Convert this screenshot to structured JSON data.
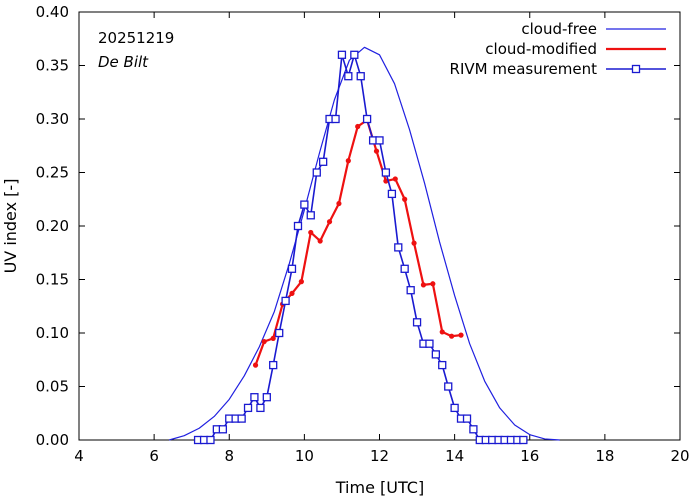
{
  "chart_data": {
    "type": "line",
    "date_label": "20251219",
    "location_label": "De Bilt",
    "xlabel": "Time  [UTC]",
    "ylabel": "UV index  [-]",
    "xlim": [
      4,
      20
    ],
    "ylim": [
      0,
      0.4
    ],
    "xticks": [
      4,
      6,
      8,
      10,
      12,
      14,
      16,
      18,
      20
    ],
    "xtick_labels": [
      "4",
      "6",
      "8",
      "10",
      "12",
      "14",
      "16",
      "18",
      "20"
    ],
    "yticks": [
      0,
      0.05,
      0.1,
      0.15,
      0.2,
      0.25,
      0.3,
      0.35,
      0.4
    ],
    "ytick_labels": [
      "0.00",
      "0.05",
      "0.10",
      "0.15",
      "0.20",
      "0.25",
      "0.30",
      "0.35",
      "0.40"
    ],
    "legend_position": "top-right",
    "series": [
      {
        "name": "cloud-free",
        "color": "#2020e0",
        "style": "line",
        "x": [
          6.4,
          6.8,
          7.2,
          7.6,
          8.0,
          8.4,
          8.8,
          9.2,
          9.6,
          10.0,
          10.4,
          10.8,
          11.2,
          11.6,
          12.0,
          12.4,
          12.8,
          13.2,
          13.6,
          14.0,
          14.4,
          14.8,
          15.2,
          15.6,
          16.0,
          16.4,
          16.8
        ],
        "y": [
          0.0,
          0.004,
          0.011,
          0.022,
          0.038,
          0.06,
          0.087,
          0.12,
          0.165,
          0.215,
          0.268,
          0.318,
          0.355,
          0.367,
          0.36,
          0.333,
          0.29,
          0.24,
          0.185,
          0.135,
          0.09,
          0.055,
          0.03,
          0.014,
          0.005,
          0.001,
          0.0
        ]
      },
      {
        "name": "cloud-modified",
        "color": "#ee1111",
        "style": "line-dots",
        "x": [
          8.7,
          8.93,
          9.17,
          9.42,
          9.67,
          9.92,
          10.17,
          10.42,
          10.67,
          10.92,
          11.17,
          11.42,
          11.67,
          11.92,
          12.17,
          12.42,
          12.67,
          12.92,
          13.17,
          13.42,
          13.67,
          13.92,
          14.17
        ],
        "y": [
          0.07,
          0.092,
          0.095,
          0.127,
          0.137,
          0.148,
          0.194,
          0.186,
          0.204,
          0.221,
          0.261,
          0.293,
          0.299,
          0.27,
          0.242,
          0.244,
          0.225,
          0.184,
          0.145,
          0.146,
          0.101,
          0.097,
          0.098
        ]
      },
      {
        "name": "RIVM measurement",
        "color": "#1a1ad0",
        "style": "line-squares",
        "x": [
          7.17,
          7.33,
          7.5,
          7.67,
          7.83,
          8.0,
          8.17,
          8.33,
          8.5,
          8.67,
          8.83,
          9.0,
          9.17,
          9.33,
          9.5,
          9.67,
          9.83,
          10.0,
          10.17,
          10.33,
          10.5,
          10.67,
          10.83,
          11.0,
          11.17,
          11.33,
          11.5,
          11.67,
          11.83,
          12.0,
          12.17,
          12.33,
          12.5,
          12.67,
          12.83,
          13.0,
          13.17,
          13.33,
          13.5,
          13.67,
          13.83,
          14.0,
          14.17,
          14.33,
          14.5,
          14.67,
          14.83,
          15.0,
          15.17,
          15.33,
          15.5,
          15.67,
          15.83
        ],
        "y": [
          0.0,
          0.0,
          0.0,
          0.01,
          0.01,
          0.02,
          0.02,
          0.02,
          0.03,
          0.04,
          0.03,
          0.04,
          0.07,
          0.1,
          0.13,
          0.16,
          0.2,
          0.22,
          0.21,
          0.25,
          0.26,
          0.3,
          0.3,
          0.36,
          0.34,
          0.36,
          0.34,
          0.3,
          0.28,
          0.28,
          0.25,
          0.23,
          0.18,
          0.16,
          0.14,
          0.11,
          0.09,
          0.09,
          0.08,
          0.07,
          0.05,
          0.03,
          0.02,
          0.02,
          0.01,
          0.0,
          0.0,
          0.0,
          0.0,
          0.0,
          0.0,
          0.0,
          0.0
        ]
      }
    ]
  }
}
